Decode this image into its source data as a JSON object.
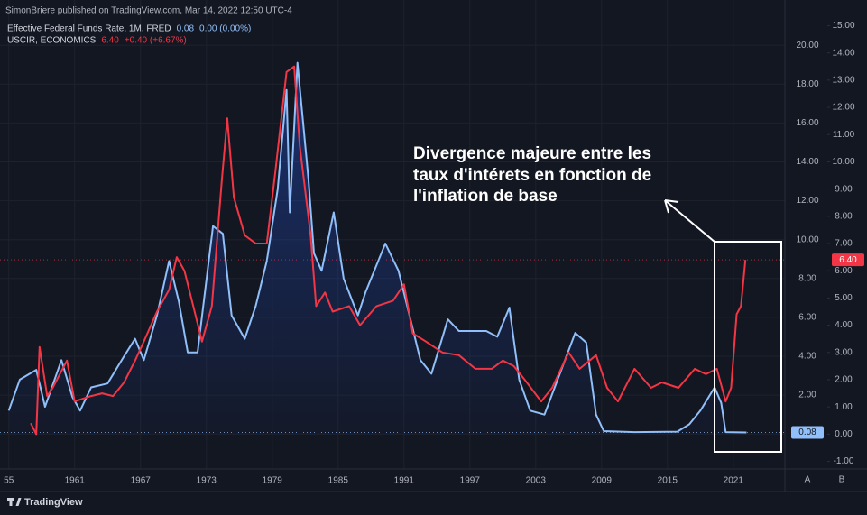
{
  "header": {
    "publisher": "SimonBriere published on TradingView.com, Mar 14, 2022 12:50 UTC-4",
    "brand": "TradingView",
    "buttons": [
      "A",
      "B"
    ]
  },
  "chart_data": {
    "type": "line",
    "annotation": [
      "Divergence majeure entre les",
      "taux d'intérets en fonction de",
      "l'inflation de base"
    ],
    "xlim": [
      1954.2,
      2025.7
    ],
    "xticks": [
      {
        "value": 1955,
        "label": "55"
      },
      1961,
      1967,
      1973,
      1979,
      1985,
      1991,
      1997,
      2003,
      2009,
      2015,
      2021
    ],
    "ylim": [
      -1.8,
      21.4
    ],
    "yticks": [
      {
        "value": 0,
        "label": "0.00"
      },
      {
        "value": 2,
        "label": "2.00"
      },
      {
        "value": 4,
        "label": "4.00"
      },
      {
        "value": 6,
        "label": "6.00"
      },
      {
        "value": 8,
        "label": "8.00"
      },
      {
        "value": 10,
        "label": "10.00"
      },
      {
        "value": 12,
        "label": "12.00"
      },
      {
        "value": 14,
        "label": "14.00"
      },
      {
        "value": 16,
        "label": "16.00"
      },
      {
        "value": 18,
        "label": "18.00"
      },
      {
        "value": 20,
        "label": "20.00"
      }
    ],
    "y2lim": [
      -1.28,
      15.28
    ],
    "y2ticks": [
      {
        "value": -1,
        "label": "-1.00"
      },
      {
        "value": 0,
        "label": "0.00"
      },
      {
        "value": 1,
        "label": "1.00"
      },
      {
        "value": 2,
        "label": "2.00"
      },
      {
        "value": 3,
        "label": "3.00"
      },
      {
        "value": 4,
        "label": "4.00"
      },
      {
        "value": 5,
        "label": "5.00"
      },
      {
        "value": 6,
        "label": "6.00"
      },
      {
        "value": 7,
        "label": "7.00"
      },
      {
        "value": 8,
        "label": "8.00"
      },
      {
        "value": 9,
        "label": "9.00"
      },
      {
        "value": 10,
        "label": "10.00"
      },
      {
        "value": 11,
        "label": "11.00"
      },
      {
        "value": 12,
        "label": "12.00"
      },
      {
        "value": 13,
        "label": "13.00"
      },
      {
        "value": 14,
        "label": "14.00"
      },
      {
        "value": 15,
        "label": "15.00"
      }
    ],
    "grid": true,
    "series": [
      {
        "name": "Effective Federal Funds Rate, 1M, FRED",
        "color": "#90bff9",
        "axis": "y",
        "area": true,
        "last_label": "0.08",
        "change_label": "0.00 (0.00%)",
        "x": [
          1955,
          1956,
          1957.5,
          1958.3,
          1959.8,
          1960.8,
          1961.5,
          1962.5,
          1964,
          1965.5,
          1966.5,
          1967.3,
          1968.5,
          1969.6,
          1970.5,
          1971.3,
          1972.2,
          1973.6,
          1974.5,
          1975.3,
          1976.5,
          1977.5,
          1978.5,
          1979.5,
          1980.3,
          1980.6,
          1981.3,
          1982.3,
          1982.8,
          1983.5,
          1984.6,
          1985.5,
          1986.8,
          1987.5,
          1989.3,
          1990.5,
          1991.5,
          1992.5,
          1993.5,
          1995,
          1996,
          1998.5,
          1999.5,
          2000.6,
          2001.5,
          2002.5,
          2003.8,
          2005,
          2006.6,
          2007.6,
          2008.5,
          2009.2,
          2012,
          2015.9,
          2017,
          2018,
          2019.3,
          2019.9,
          2020.3,
          2022.2
        ],
        "values": [
          1.2,
          2.8,
          3.3,
          1.4,
          3.8,
          1.9,
          1.2,
          2.4,
          2.6,
          4.0,
          4.9,
          3.8,
          6.1,
          8.9,
          6.8,
          4.2,
          4.2,
          10.7,
          10.3,
          6.1,
          4.9,
          6.6,
          8.9,
          12.6,
          17.7,
          11.4,
          19.1,
          13.1,
          9.3,
          8.4,
          11.4,
          8.0,
          6.1,
          7.3,
          9.8,
          8.4,
          6.1,
          3.8,
          3.1,
          5.9,
          5.3,
          5.3,
          5.0,
          6.5,
          2.8,
          1.2,
          1.0,
          2.8,
          5.2,
          4.7,
          1.0,
          0.15,
          0.1,
          0.12,
          0.5,
          1.2,
          2.4,
          1.6,
          0.1,
          0.08
        ]
      },
      {
        "name": "USCIR, ECONOMICS",
        "color": "#f23645",
        "axis": "y2",
        "last_label": "6.40",
        "change_label": "+0.40 (+6.67%)",
        "x": [
          1957,
          1957.5,
          1957.8,
          1958.5,
          1959,
          1960.3,
          1961,
          1962.5,
          1963.5,
          1964.5,
          1965.5,
          1966.5,
          1967.3,
          1968.5,
          1969.6,
          1970.3,
          1971,
          1971.8,
          1972.6,
          1973.5,
          1974.4,
          1974.9,
          1975.5,
          1976.5,
          1977.5,
          1978.5,
          1979.3,
          1980.3,
          1981,
          1981.5,
          1982.5,
          1983,
          1983.8,
          1984.5,
          1986,
          1987,
          1988.5,
          1990,
          1991,
          1991.8,
          1993,
          1994.5,
          1996,
          1997.5,
          1999,
          2000,
          2001,
          2002,
          2003.5,
          2004.5,
          2006,
          2007,
          2008.5,
          2009.5,
          2010.5,
          2012,
          2013.5,
          2014.5,
          2016,
          2017.5,
          2018.5,
          2019.5,
          2020.3,
          2020.8,
          2021.3,
          2021.7,
          2022.1
        ],
        "values": [
          0.4,
          0,
          3.2,
          1.4,
          1.7,
          2.7,
          1.2,
          1.4,
          1.5,
          1.4,
          1.9,
          2.7,
          3.4,
          4.5,
          5.3,
          6.5,
          6.0,
          4.7,
          3.4,
          4.7,
          9.3,
          11.6,
          8.7,
          7.3,
          7.0,
          7.0,
          9.7,
          13.3,
          13.5,
          10.6,
          7.3,
          4.7,
          5.2,
          4.5,
          4.7,
          4.0,
          4.7,
          4.9,
          5.5,
          3.7,
          3.4,
          3.0,
          2.9,
          2.4,
          2.4,
          2.7,
          2.5,
          2.0,
          1.2,
          1.7,
          3.0,
          2.4,
          2.9,
          1.7,
          1.2,
          2.4,
          1.7,
          1.9,
          1.7,
          2.4,
          2.2,
          2.4,
          1.2,
          1.7,
          4.4,
          4.7,
          6.4
        ]
      }
    ]
  }
}
